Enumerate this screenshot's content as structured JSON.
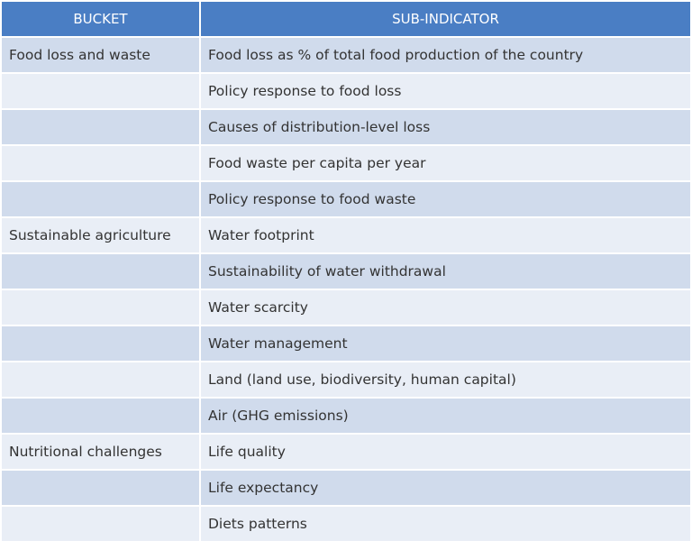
{
  "header": {
    "bucket": "BUCKET",
    "sub_indicator": "SUB-INDICATOR"
  },
  "rows": [
    {
      "bucket": "Food loss and waste",
      "sub_indicator": "Food loss as % of total food production of the country"
    },
    {
      "bucket": "",
      "sub_indicator": "Policy response to food loss"
    },
    {
      "bucket": "",
      "sub_indicator": "Causes of distribution-level loss"
    },
    {
      "bucket": "",
      "sub_indicator": "Food waste per capita per year"
    },
    {
      "bucket": "",
      "sub_indicator": "Policy response to food waste"
    },
    {
      "bucket": "Sustainable agriculture",
      "sub_indicator": "Water footprint"
    },
    {
      "bucket": "",
      "sub_indicator": "Sustainability of water withdrawal"
    },
    {
      "bucket": "",
      "sub_indicator": "Water scarcity"
    },
    {
      "bucket": "",
      "sub_indicator": "Water management"
    },
    {
      "bucket": "",
      "sub_indicator": "Land (land use, biodiversity, human capital)"
    },
    {
      "bucket": "",
      "sub_indicator": "Air (GHG emissions)"
    },
    {
      "bucket": "Nutritional challenges",
      "sub_indicator": "Life quality"
    },
    {
      "bucket": "",
      "sub_indicator": "Life expectancy"
    },
    {
      "bucket": "",
      "sub_indicator": "Diets patterns"
    }
  ],
  "colors": {
    "header_bg": "#4a7ec4",
    "row_band_dark": "#d0dbec",
    "row_band_light": "#e9eef6"
  }
}
